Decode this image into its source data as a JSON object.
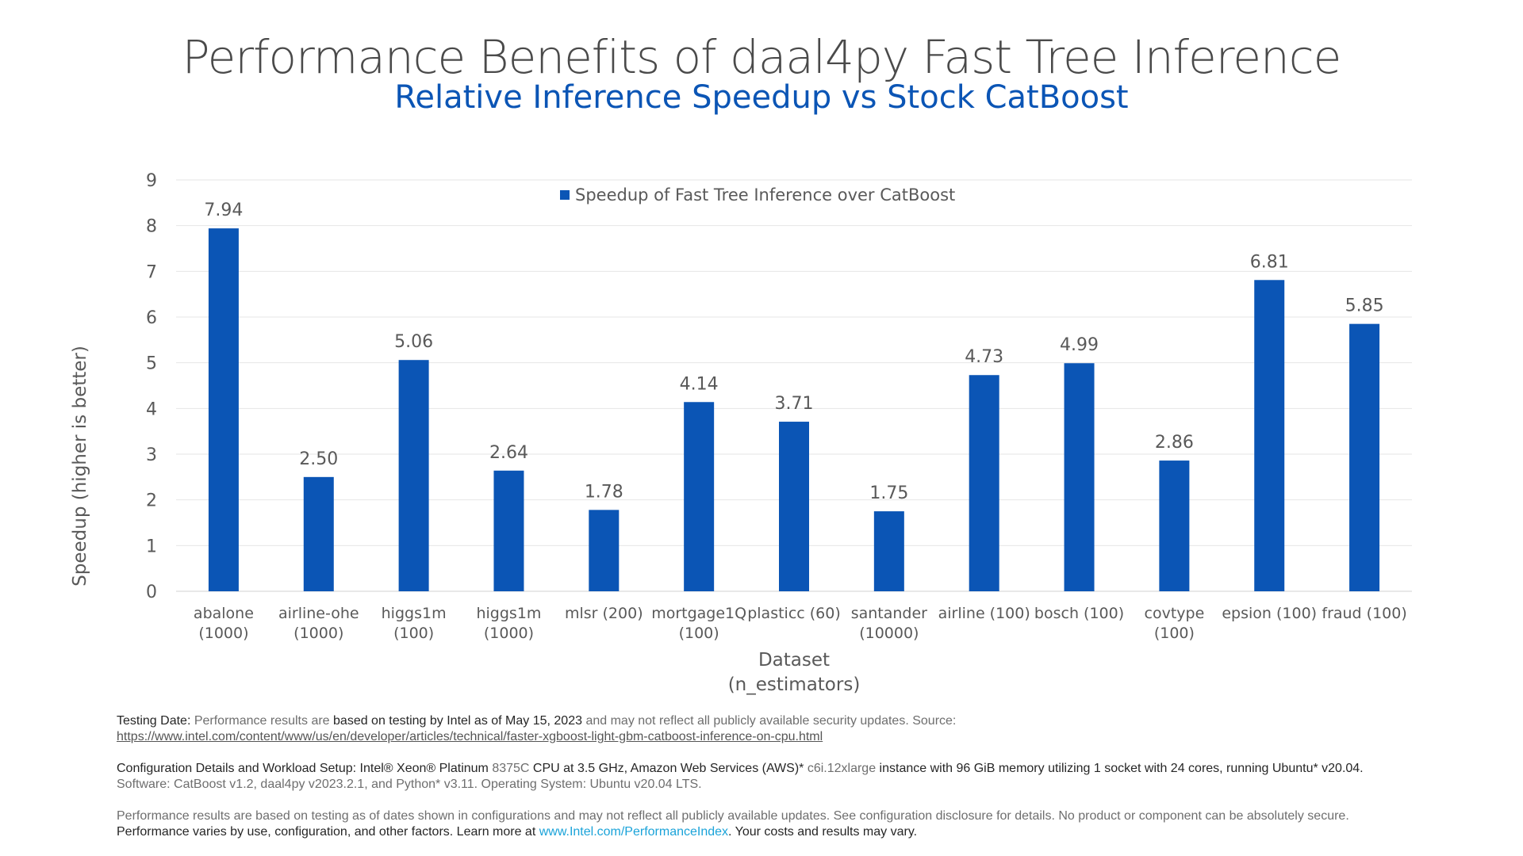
{
  "title": "Performance Benefits of daal4py Fast Tree Inference",
  "subtitle": "Relative Inference Speedup vs Stock CatBoost",
  "chart_data": {
    "type": "bar",
    "title": "Performance Benefits of daal4py Fast Tree Inference",
    "subtitle": "Relative Inference Speedup vs Stock CatBoost",
    "categories": [
      [
        "abalone",
        "(1000)"
      ],
      [
        "airline-ohe",
        "(1000)"
      ],
      [
        "higgs1m",
        "(100)"
      ],
      [
        "higgs1m",
        "(1000)"
      ],
      [
        "mlsr (200)"
      ],
      [
        "mortgage1Q",
        "(100)"
      ],
      [
        "plasticc (60)"
      ],
      [
        "santander",
        "(10000)"
      ],
      [
        "airline (100)"
      ],
      [
        "bosch (100)"
      ],
      [
        "covtype",
        "(100)"
      ],
      [
        "epsion (100)"
      ],
      [
        "fraud (100)"
      ]
    ],
    "values": [
      7.94,
      2.5,
      5.06,
      2.64,
      1.78,
      4.14,
      3.71,
      1.75,
      4.73,
      4.99,
      2.86,
      6.81,
      5.85
    ],
    "value_labels": [
      "7.94",
      "2.50",
      "5.06",
      "2.64",
      "1.78",
      "4.14",
      "3.71",
      "1.75",
      "4.73",
      "4.99",
      "2.86",
      "6.81",
      "5.85"
    ],
    "legend": "Speedup of Fast Tree Inference over CatBoost",
    "legend_position": "top-center",
    "xlabel": [
      "Dataset",
      "(n_estimators)"
    ],
    "ylabel": "Speedup (higher is better)",
    "ylim": [
      0,
      9
    ],
    "yticks": [
      0,
      1,
      2,
      3,
      4,
      5,
      6,
      7,
      8,
      9
    ],
    "grid": true,
    "bar_color": "#0b55b5"
  },
  "footer": {
    "testing_label": "Testing Date:",
    "testing_text_1": " Performance results are ",
    "testing_dark": "based on testing by Intel as of May 15, 2023",
    "testing_text_2": " and may not reflect all publicly available security updates. Source:",
    "source_url": "https://www.intel.com/content/www/us/en/developer/articles/technical/faster-xgboost-light-gbm-catboost-inference-on-cpu.html",
    "config_label": "Configuration Details and Workload Setup:",
    "config_cpu": "  Intel® Xeon® Platinum ",
    "config_model": "8375C",
    "config_text": " CPU at 3.5 GHz, Amazon Web Services (AWS)* ",
    "config_instance": "c6i.12xlarge",
    "config_text_2": " instance with 96 GiB memory utilizing 1 socket with 24 cores, running Ubuntu* v20.04.",
    "software_line": "Software: CatBoost v1.2, daal4py v2023.2.1, and Python* v3.11. Operating System: Ubuntu v20.04 LTS.",
    "disclaimer_1": "Performance results are based on testing as of dates shown in configurations and may not reflect all publicly available updates. See configuration disclosure for details.  No product or component can be absolutely secure.",
    "disclaimer_2a": "Performance varies by use, configuration, and other factors. Learn more at ",
    "disclaimer_link": "www.Intel.com/PerformanceIndex",
    "disclaimer_2b": ". Your costs and results may vary."
  }
}
